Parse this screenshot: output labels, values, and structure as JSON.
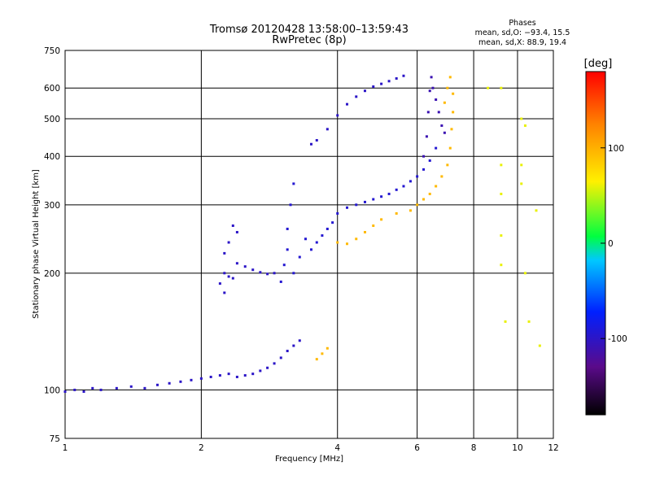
{
  "chart_data": {
    "type": "scatter",
    "title": "Tromsø 20120428 13:58:00–13:59:43",
    "subtitle": "RwPretec (8p)",
    "xlabel": "Frequency [MHz]",
    "ylabel": "Stationary phase Virtual Height [km]",
    "x_scale": "log",
    "y_scale": "log",
    "xlim": [
      1,
      12
    ],
    "ylim": [
      75,
      750
    ],
    "x_ticks": [
      1,
      2,
      4,
      6,
      8,
      10,
      12
    ],
    "y_ticks": [
      75,
      100,
      200,
      300,
      400,
      500,
      600,
      750
    ],
    "grid": true,
    "info_header": "Phases",
    "info_lines": [
      "mean, sd,O: −93.4, 15.5",
      "mean, sd,X:  88.9, 19.4"
    ],
    "colorbar": {
      "label": "[deg]",
      "range": [
        -180,
        180
      ],
      "ticks": [
        100,
        0,
        -100
      ]
    },
    "series": [
      {
        "values": [
          [
            1.0,
            99
          ],
          [
            1.05,
            100
          ],
          [
            1.1,
            99
          ],
          [
            1.15,
            101
          ],
          [
            1.2,
            100
          ],
          [
            1.3,
            101
          ],
          [
            1.4,
            102
          ],
          [
            1.5,
            101
          ],
          [
            1.6,
            103
          ],
          [
            1.7,
            104
          ],
          [
            1.8,
            105
          ],
          [
            1.9,
            106
          ],
          [
            2.0,
            107
          ],
          [
            2.1,
            108
          ],
          [
            2.2,
            109
          ],
          [
            2.3,
            110
          ],
          [
            2.4,
            108
          ],
          [
            2.5,
            109
          ],
          [
            2.6,
            110
          ],
          [
            2.7,
            112
          ],
          [
            2.8,
            114
          ],
          [
            2.9,
            117
          ],
          [
            3.0,
            121
          ],
          [
            3.1,
            126
          ],
          [
            3.2,
            130
          ],
          [
            3.3,
            134
          ]
        ],
        "phase": -100
      },
      {
        "values": [
          [
            2.25,
            200
          ],
          [
            2.3,
            196
          ],
          [
            2.35,
            194
          ],
          [
            2.4,
            212
          ],
          [
            2.5,
            208
          ],
          [
            2.6,
            204
          ],
          [
            2.7,
            201
          ],
          [
            2.8,
            199
          ],
          [
            2.9,
            200
          ],
          [
            2.2,
            188
          ],
          [
            2.25,
            178
          ],
          [
            2.3,
            240
          ],
          [
            2.35,
            265
          ],
          [
            2.4,
            255
          ],
          [
            2.25,
            225
          ]
        ],
        "phase": -100
      },
      {
        "values": [
          [
            3.0,
            190
          ],
          [
            3.05,
            210
          ],
          [
            3.1,
            230
          ],
          [
            3.1,
            260
          ],
          [
            3.15,
            300
          ],
          [
            3.2,
            340
          ],
          [
            3.2,
            200
          ],
          [
            3.3,
            220
          ],
          [
            3.4,
            245
          ],
          [
            3.5,
            230
          ],
          [
            3.6,
            240
          ],
          [
            3.7,
            250
          ],
          [
            3.8,
            260
          ],
          [
            3.9,
            270
          ],
          [
            4.0,
            285
          ],
          [
            4.2,
            295
          ],
          [
            4.4,
            300
          ],
          [
            4.6,
            305
          ],
          [
            4.8,
            310
          ],
          [
            5.0,
            315
          ],
          [
            5.2,
            320
          ],
          [
            5.4,
            328
          ],
          [
            5.6,
            335
          ],
          [
            5.8,
            345
          ],
          [
            6.0,
            355
          ],
          [
            6.2,
            370
          ],
          [
            6.4,
            390
          ],
          [
            6.6,
            420
          ]
        ],
        "phase": -95
      },
      {
        "values": [
          [
            3.5,
            430
          ],
          [
            3.6,
            440
          ],
          [
            3.8,
            470
          ],
          [
            4.0,
            510
          ],
          [
            4.2,
            545
          ],
          [
            4.4,
            570
          ],
          [
            4.6,
            590
          ],
          [
            4.8,
            605
          ],
          [
            5.0,
            615
          ],
          [
            5.2,
            625
          ],
          [
            5.4,
            635
          ],
          [
            5.6,
            645
          ]
        ],
        "phase": -100
      },
      {
        "values": [
          [
            6.2,
            400
          ],
          [
            6.3,
            450
          ],
          [
            6.35,
            520
          ],
          [
            6.4,
            590
          ],
          [
            6.45,
            640
          ],
          [
            6.5,
            600
          ],
          [
            6.6,
            560
          ],
          [
            6.7,
            520
          ],
          [
            6.8,
            480
          ],
          [
            6.9,
            460
          ]
        ],
        "phase": -110
      },
      {
        "values": [
          [
            4.0,
            240
          ],
          [
            4.2,
            238
          ],
          [
            4.4,
            245
          ],
          [
            4.6,
            255
          ],
          [
            4.8,
            265
          ],
          [
            5.0,
            275
          ],
          [
            5.4,
            285
          ],
          [
            5.8,
            290
          ],
          [
            6.0,
            300
          ],
          [
            6.2,
            310
          ],
          [
            6.4,
            320
          ],
          [
            6.6,
            335
          ],
          [
            6.8,
            355
          ],
          [
            7.0,
            380
          ],
          [
            7.1,
            420
          ],
          [
            7.15,
            470
          ],
          [
            7.2,
            520
          ],
          [
            7.2,
            580
          ],
          [
            7.1,
            640
          ],
          [
            7.0,
            600
          ],
          [
            6.9,
            550
          ],
          [
            3.6,
            120
          ],
          [
            3.7,
            124
          ],
          [
            3.8,
            128
          ]
        ],
        "phase": 95
      },
      {
        "values": [
          [
            8.6,
            600
          ],
          [
            9.2,
            600
          ],
          [
            9.2,
            380
          ],
          [
            9.2,
            320
          ],
          [
            9.2,
            250
          ],
          [
            9.2,
            210
          ],
          [
            9.4,
            150
          ],
          [
            10.2,
            500
          ],
          [
            10.2,
            380
          ],
          [
            10.2,
            340
          ],
          [
            10.4,
            200
          ],
          [
            10.6,
            150
          ],
          [
            11.0,
            290
          ],
          [
            11.2,
            130
          ],
          [
            10.4,
            480
          ]
        ],
        "phase": 60
      }
    ]
  }
}
